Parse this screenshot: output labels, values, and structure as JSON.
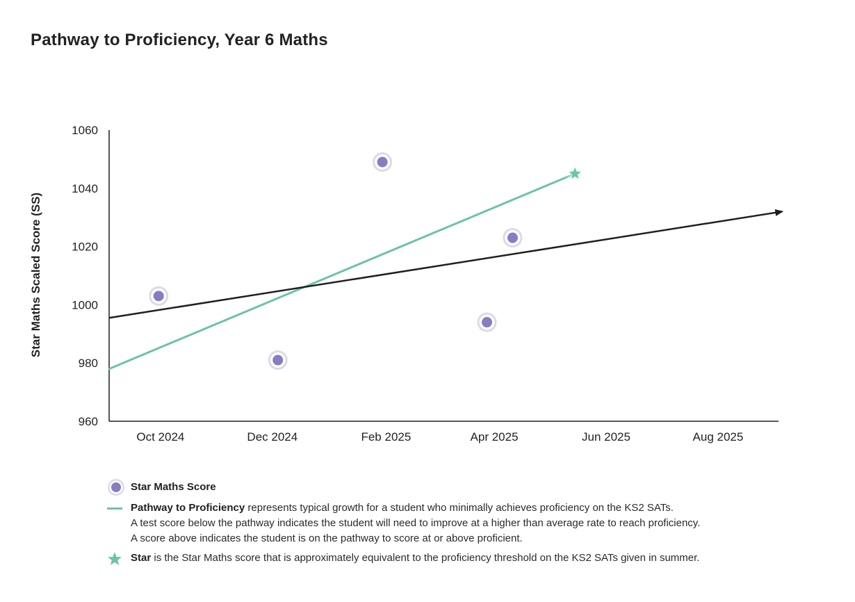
{
  "title": "Pathway to Proficiency, Year 6 Maths",
  "chart_data": {
    "type": "scatter",
    "title": "Pathway to Proficiency, Year 6 Maths",
    "ylabel": "Star Maths Scaled Score (SS)",
    "xlabel": "",
    "ylim": [
      960,
      1060
    ],
    "yticks": [
      960,
      980,
      1000,
      1020,
      1040,
      1060
    ],
    "xticks": [
      "2024-10-01",
      "2024-12-01",
      "2025-02-01",
      "2025-04-01",
      "2025-06-01",
      "2025-08-01"
    ],
    "xtick_labels": [
      "Oct 2024",
      "Dec 2024",
      "Feb 2025",
      "Apr 2025",
      "Jun 2025",
      "Aug 2025"
    ],
    "xlim": [
      "2024-09-03",
      "2025-09-03"
    ],
    "grid": false,
    "series": [
      {
        "name": "Star Maths Score",
        "kind": "points",
        "color": "#8a7cc0",
        "points": [
          {
            "x": "2024-09-30",
            "y": 1003
          },
          {
            "x": "2024-12-04",
            "y": 981
          },
          {
            "x": "2025-01-30",
            "y": 1049
          },
          {
            "x": "2025-03-28",
            "y": 994
          },
          {
            "x": "2025-04-11",
            "y": 1023
          }
        ]
      },
      {
        "name": "Pathway to Proficiency",
        "kind": "line",
        "color": "#6cc3a6",
        "points": [
          {
            "x": "2024-09-03",
            "y": 978
          },
          {
            "x": "2025-05-15",
            "y": 1045
          }
        ]
      },
      {
        "kind": "trend-arrow",
        "color": "#1f1f1f",
        "points": [
          {
            "x": "2024-09-03",
            "y": 995.5
          },
          {
            "x": "2025-09-05",
            "y": 1032
          }
        ]
      },
      {
        "name": "Star",
        "kind": "star",
        "color": "#6cc3a6",
        "points": [
          {
            "x": "2025-05-15",
            "y": 1045
          }
        ]
      }
    ]
  },
  "legend": {
    "score_label": "Star Maths Score",
    "pathway_label": "Pathway to Proficiency",
    "pathway_text_1": " represents typical growth for a student who minimally achieves proficiency on the KS2 SATs.",
    "pathway_text_2": "A test score below the pathway indicates the student will need to improve at a higher than average rate to reach proficiency.",
    "pathway_text_3": "A score above indicates the student is on the pathway to score at or above proficient.",
    "star_label": "Star",
    "star_text": " is the Star Maths score that is approximately equivalent to the proficiency threshold on the KS2 SATs given in summer."
  },
  "colors": {
    "score_dot": "#8a7cc0",
    "score_halo": "#dcd9ea",
    "pathway": "#6cc3a6",
    "trend": "#1f1f1f",
    "axis": "#1f1f1f"
  }
}
